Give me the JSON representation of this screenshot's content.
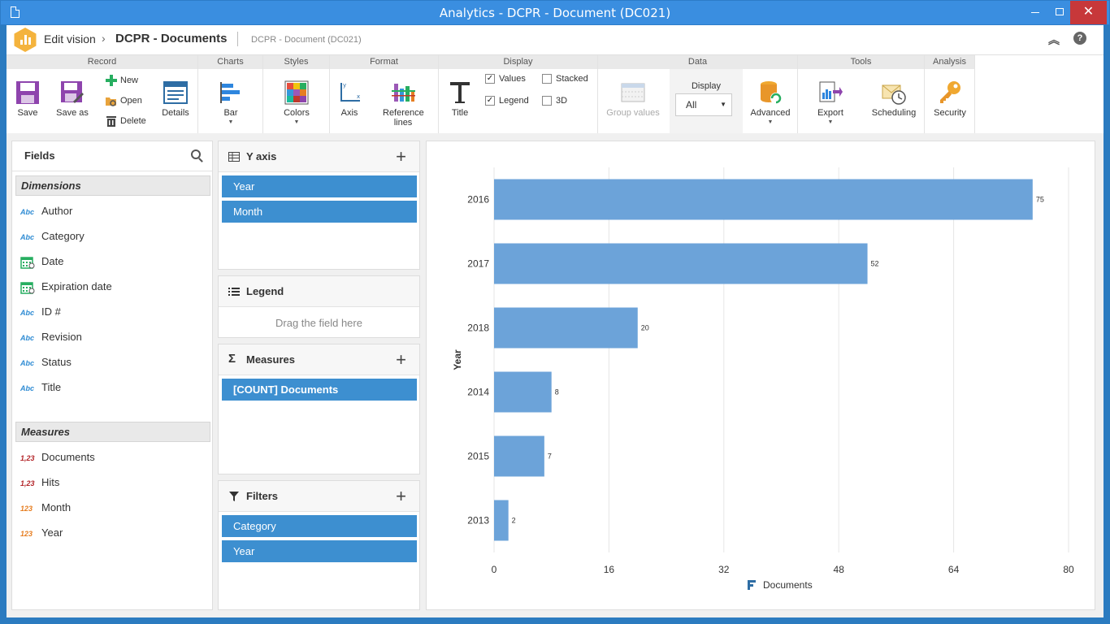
{
  "window": {
    "title": "Analytics - DCPR - Document (DC021)"
  },
  "header": {
    "crumb1": "Edit vision",
    "crumb_sep": "›",
    "crumb2": "DCPR - Documents",
    "crumb3": "DCPR - Document (DC021)"
  },
  "ribbon": {
    "record": {
      "title": "Record",
      "save": "Save",
      "save_as": "Save as",
      "new": "New",
      "open": "Open",
      "delete": "Delete",
      "details": "Details"
    },
    "charts": {
      "title": "Charts",
      "bar": "Bar"
    },
    "styles": {
      "title": "Styles",
      "colors": "Colors"
    },
    "format": {
      "title": "Format",
      "axis": "Axis",
      "reference_lines": "Reference lines"
    },
    "display": {
      "title": "Display",
      "title_btn": "Title",
      "values": "Values",
      "legend": "Legend",
      "stacked": "Stacked",
      "threed": "3D",
      "values_checked": true,
      "legend_checked": true,
      "stacked_checked": false,
      "threed_checked": false
    },
    "data": {
      "title": "Data",
      "group_values": "Group values",
      "display_label": "Display",
      "display_value": "All",
      "advanced": "Advanced"
    },
    "tools": {
      "title": "Tools",
      "export": "Export",
      "scheduling": "Scheduling"
    },
    "analysis": {
      "title": "Analysis",
      "security": "Security"
    }
  },
  "fields": {
    "title": "Fields",
    "dimensions_title": "Dimensions",
    "dimensions": [
      {
        "type": "Abc",
        "label": "Author"
      },
      {
        "type": "Abc",
        "label": "Category"
      },
      {
        "type": "calendar",
        "label": "Date"
      },
      {
        "type": "calendar",
        "label": "Expiration date"
      },
      {
        "type": "Abc",
        "label": "ID #"
      },
      {
        "type": "Abc",
        "label": "Revision"
      },
      {
        "type": "Abc",
        "label": "Status"
      },
      {
        "type": "Abc",
        "label": "Title"
      }
    ],
    "measures_title": "Measures",
    "measures": [
      {
        "type": "1,23",
        "label": "Documents"
      },
      {
        "type": "1,23",
        "label": "Hits"
      },
      {
        "type": "123",
        "label": "Month"
      },
      {
        "type": "123",
        "label": "Year"
      }
    ]
  },
  "yaxis_panel": {
    "title": "Y axis",
    "items": [
      "Year",
      "Month"
    ]
  },
  "legend_panel": {
    "title": "Legend",
    "placeholder": "Drag the field here"
  },
  "measures_panel": {
    "title": "Measures",
    "items": [
      "[COUNT] Documents"
    ]
  },
  "filters_panel": {
    "title": "Filters",
    "items": [
      "Category",
      "Year"
    ]
  },
  "colors": {
    "accent": "#3d8fd0",
    "bar": "#6ca3d9",
    "titlebar": "#3a8ee0"
  },
  "chart_data": {
    "type": "bar",
    "orientation": "horizontal",
    "categories": [
      "2016",
      "2017",
      "2018",
      "2014",
      "2015",
      "2013"
    ],
    "values": [
      75,
      52,
      20,
      8,
      7,
      2
    ],
    "ylabel": "Year",
    "xticks": [
      "0",
      "16",
      "32",
      "48",
      "64",
      "80"
    ],
    "xlim": [
      0,
      80
    ],
    "series": [
      {
        "name": "Documents",
        "values": [
          75,
          52,
          20,
          8,
          7,
          2
        ]
      }
    ],
    "legend_position": "bottom",
    "grid": true
  }
}
